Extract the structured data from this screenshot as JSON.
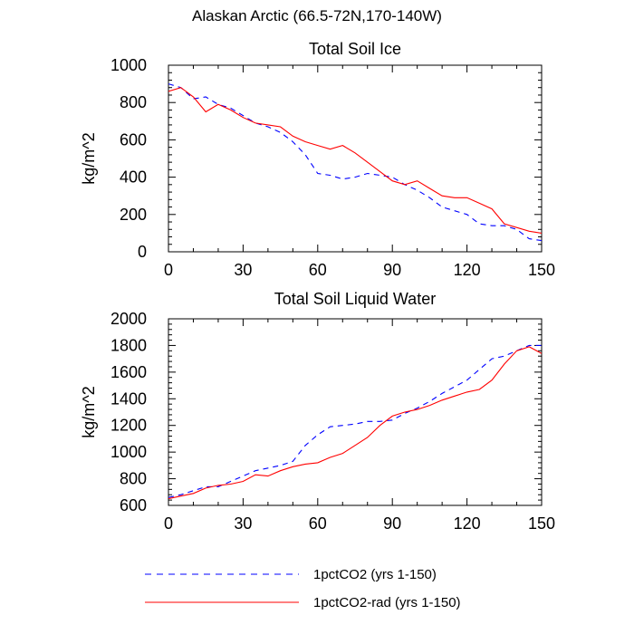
{
  "figure": {
    "title": "Alaskan Arctic (66.5-72N,170-140W)"
  },
  "legend": [
    {
      "label": "1pctCO2 (yrs 1-150)",
      "color": "#0000ff",
      "dash": "dashed"
    },
    {
      "label": "1pctCO2-rad (yrs 1-150)",
      "color": "#ff0000",
      "dash": "solid"
    }
  ],
  "chart_data": [
    {
      "type": "line",
      "title": "Total Soil Ice",
      "xlabel": "",
      "ylabel": "kg/m^2",
      "xlim": [
        0,
        150
      ],
      "ylim": [
        0,
        1000
      ],
      "xticks": [
        0,
        30,
        60,
        90,
        120,
        150
      ],
      "yticks": [
        0,
        200,
        400,
        600,
        800,
        1000
      ],
      "x": [
        0,
        5,
        10,
        15,
        20,
        25,
        30,
        35,
        40,
        45,
        50,
        55,
        60,
        65,
        70,
        75,
        80,
        85,
        90,
        95,
        100,
        105,
        110,
        115,
        120,
        125,
        130,
        135,
        140,
        145,
        150
      ],
      "series": [
        {
          "name": "1pctCO2 (yrs 1-150)",
          "color": "#0000ff",
          "values": [
            900,
            880,
            820,
            830,
            790,
            770,
            730,
            690,
            670,
            640,
            590,
            520,
            420,
            410,
            390,
            400,
            420,
            410,
            400,
            360,
            330,
            290,
            240,
            220,
            200,
            150,
            140,
            140,
            120,
            70,
            60
          ]
        },
        {
          "name": "1pctCO2-rad (yrs 1-150)",
          "color": "#ff0000",
          "values": [
            860,
            880,
            830,
            750,
            790,
            760,
            720,
            690,
            680,
            670,
            620,
            590,
            570,
            550,
            570,
            530,
            480,
            430,
            380,
            360,
            380,
            340,
            300,
            290,
            290,
            260,
            230,
            150,
            130,
            110,
            100
          ]
        }
      ]
    },
    {
      "type": "line",
      "title": "Total Soil Liquid Water",
      "xlabel": "",
      "ylabel": "kg/m^2",
      "xlim": [
        0,
        150
      ],
      "ylim": [
        600,
        2000
      ],
      "xticks": [
        0,
        30,
        60,
        90,
        120,
        150
      ],
      "yticks": [
        600,
        800,
        1000,
        1200,
        1400,
        1600,
        1800,
        2000
      ],
      "x": [
        0,
        5,
        10,
        15,
        20,
        25,
        30,
        35,
        40,
        45,
        50,
        55,
        60,
        65,
        70,
        75,
        80,
        85,
        90,
        95,
        100,
        105,
        110,
        115,
        120,
        125,
        130,
        135,
        140,
        145,
        150
      ],
      "series": [
        {
          "name": "1pctCO2 (yrs 1-150)",
          "color": "#0000ff",
          "values": [
            660,
            680,
            710,
            740,
            740,
            780,
            820,
            860,
            880,
            900,
            930,
            1050,
            1130,
            1190,
            1200,
            1210,
            1230,
            1230,
            1240,
            1290,
            1330,
            1380,
            1440,
            1490,
            1540,
            1620,
            1700,
            1720,
            1760,
            1800,
            1800
          ]
        },
        {
          "name": "1pctCO2-rad (yrs 1-150)",
          "color": "#ff0000",
          "values": [
            650,
            670,
            690,
            730,
            750,
            760,
            780,
            830,
            820,
            860,
            890,
            910,
            920,
            960,
            990,
            1050,
            1110,
            1200,
            1270,
            1300,
            1320,
            1350,
            1390,
            1420,
            1450,
            1470,
            1540,
            1660,
            1760,
            1790,
            1740
          ]
        }
      ]
    }
  ]
}
